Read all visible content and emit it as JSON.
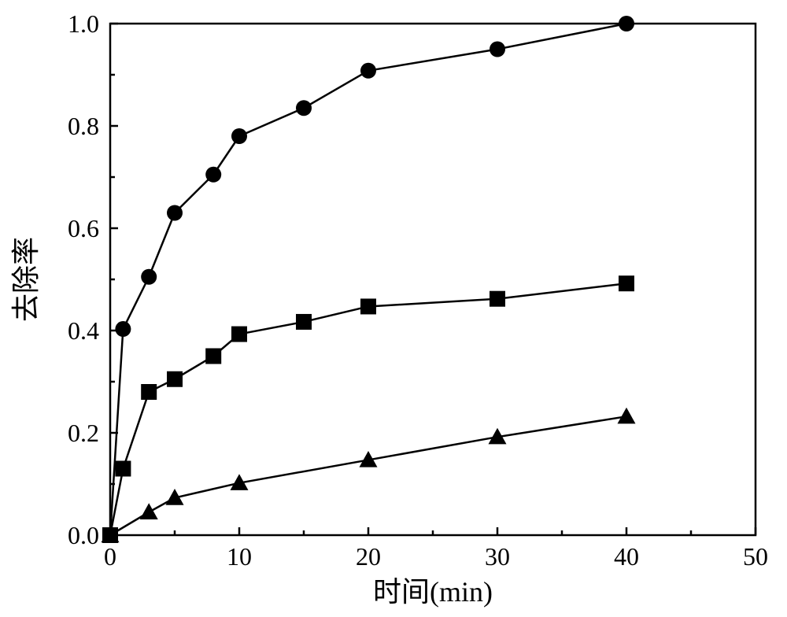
{
  "chart": {
    "type": "line",
    "background_color": "#ffffff",
    "plot_border_color": "#000000",
    "plot_border_width": 2.5,
    "line_color": "#000000",
    "line_width": 2.5,
    "marker_size": 10,
    "marker_color": "#000000",
    "axis": {
      "tick_length_major": 10,
      "tick_length_minor": 6,
      "tick_width": 2.5,
      "tick_label_fontsize": 32,
      "tick_label_color": "#000000",
      "axis_label_fontsize": 36,
      "axis_label_color": "#000000"
    },
    "x": {
      "label": "时间(min)",
      "min": 0,
      "max": 50,
      "ticks_major": [
        0,
        10,
        20,
        30,
        40,
        50
      ],
      "ticks_minor": [
        5,
        15,
        25,
        35,
        45
      ]
    },
    "y": {
      "label": "去除率",
      "min": 0.0,
      "max": 1.0,
      "ticks_major": [
        0.0,
        0.2,
        0.4,
        0.6,
        0.8,
        1.0
      ],
      "ticks_minor": [
        0.1,
        0.3,
        0.5,
        0.7,
        0.9
      ]
    },
    "series": [
      {
        "marker": "circle",
        "points": [
          {
            "x": 0,
            "y": 0.0
          },
          {
            "x": 1,
            "y": 0.403
          },
          {
            "x": 3,
            "y": 0.505
          },
          {
            "x": 5,
            "y": 0.63
          },
          {
            "x": 8,
            "y": 0.705
          },
          {
            "x": 10,
            "y": 0.78
          },
          {
            "x": 15,
            "y": 0.835
          },
          {
            "x": 20,
            "y": 0.908
          },
          {
            "x": 30,
            "y": 0.95
          },
          {
            "x": 40,
            "y": 1.0
          }
        ]
      },
      {
        "marker": "square",
        "points": [
          {
            "x": 0,
            "y": 0.0
          },
          {
            "x": 1,
            "y": 0.13
          },
          {
            "x": 3,
            "y": 0.28
          },
          {
            "x": 5,
            "y": 0.305
          },
          {
            "x": 8,
            "y": 0.35
          },
          {
            "x": 10,
            "y": 0.393
          },
          {
            "x": 15,
            "y": 0.417
          },
          {
            "x": 20,
            "y": 0.447
          },
          {
            "x": 30,
            "y": 0.462
          },
          {
            "x": 40,
            "y": 0.492
          }
        ]
      },
      {
        "marker": "triangle",
        "points": [
          {
            "x": 0,
            "y": 0.0
          },
          {
            "x": 3,
            "y": 0.045
          },
          {
            "x": 5,
            "y": 0.073
          },
          {
            "x": 10,
            "y": 0.102
          },
          {
            "x": 20,
            "y": 0.147
          },
          {
            "x": 30,
            "y": 0.192
          },
          {
            "x": 40,
            "y": 0.232
          }
        ]
      }
    ]
  }
}
